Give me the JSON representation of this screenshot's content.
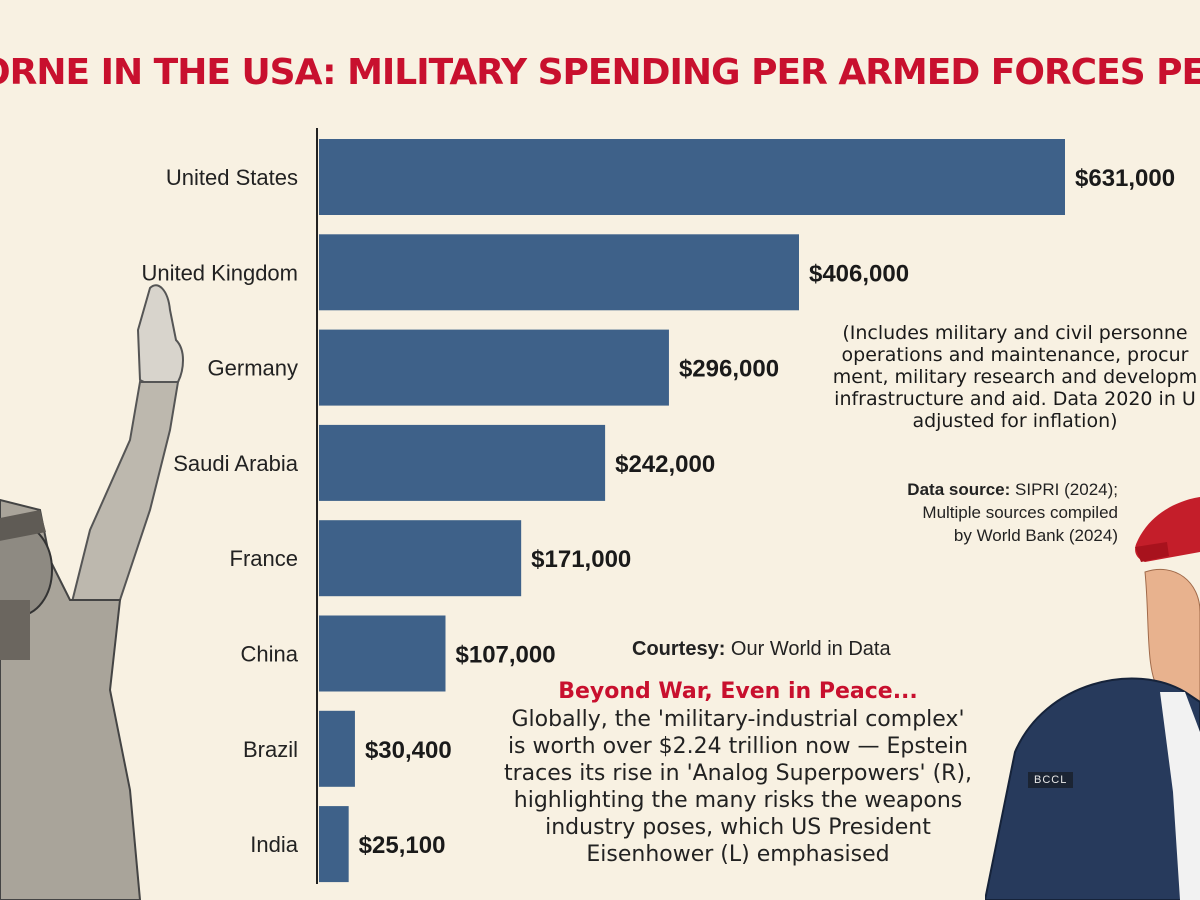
{
  "title": "ORNE IN THE USA: MILITARY SPENDING PER ARMED FORCES PERSONN",
  "note_lines": [
    "(Includes military and civil personne",
    "operations and maintenance, procur",
    "ment, military research and developm",
    "infrastructure and aid. Data 2020 in U",
    "adjusted for inflation)"
  ],
  "source": {
    "label": "Data source:",
    "line1_rest": " SIPRI (2024);",
    "line2": "Multiple sources compiled",
    "line3": "by World Bank (2024)"
  },
  "courtesy": {
    "label": "Courtesy:",
    "text": " Our World in Data"
  },
  "callout": {
    "heading": "Beyond War, Even in Peace...",
    "lines": [
      "Globally, the 'military-industrial complex'",
      "is worth over $2.24 trillion now — Epstein",
      "traces its rise in 'Analog Superpowers' (R),",
      "highlighting the many risks the weapons",
      "industry poses, which US President",
      "Eisenhower (L) emphasised"
    ]
  },
  "photo_credit": "BCCL",
  "colors": {
    "bar": "#3e6189",
    "title": "#c8102e",
    "background": "#f8f1e2"
  },
  "icons": {
    "left_photo": "waving-general-photo",
    "right_photo": "man-in-red-cap-photo"
  },
  "chart_data": {
    "type": "bar",
    "orientation": "horizontal",
    "categories": [
      "United States",
      "United Kingdom",
      "Germany",
      "Saudi Arabia",
      "France",
      "China",
      "Brazil",
      "India"
    ],
    "values": [
      631000,
      406000,
      296000,
      242000,
      171000,
      107000,
      30400,
      25100
    ],
    "value_labels": [
      "$631,000",
      "$406,000",
      "$296,000",
      "$242,000",
      "$171,000",
      "$107,000",
      "$30,400",
      "$25,100"
    ],
    "xlim": [
      0,
      631000
    ],
    "grid": false
  }
}
